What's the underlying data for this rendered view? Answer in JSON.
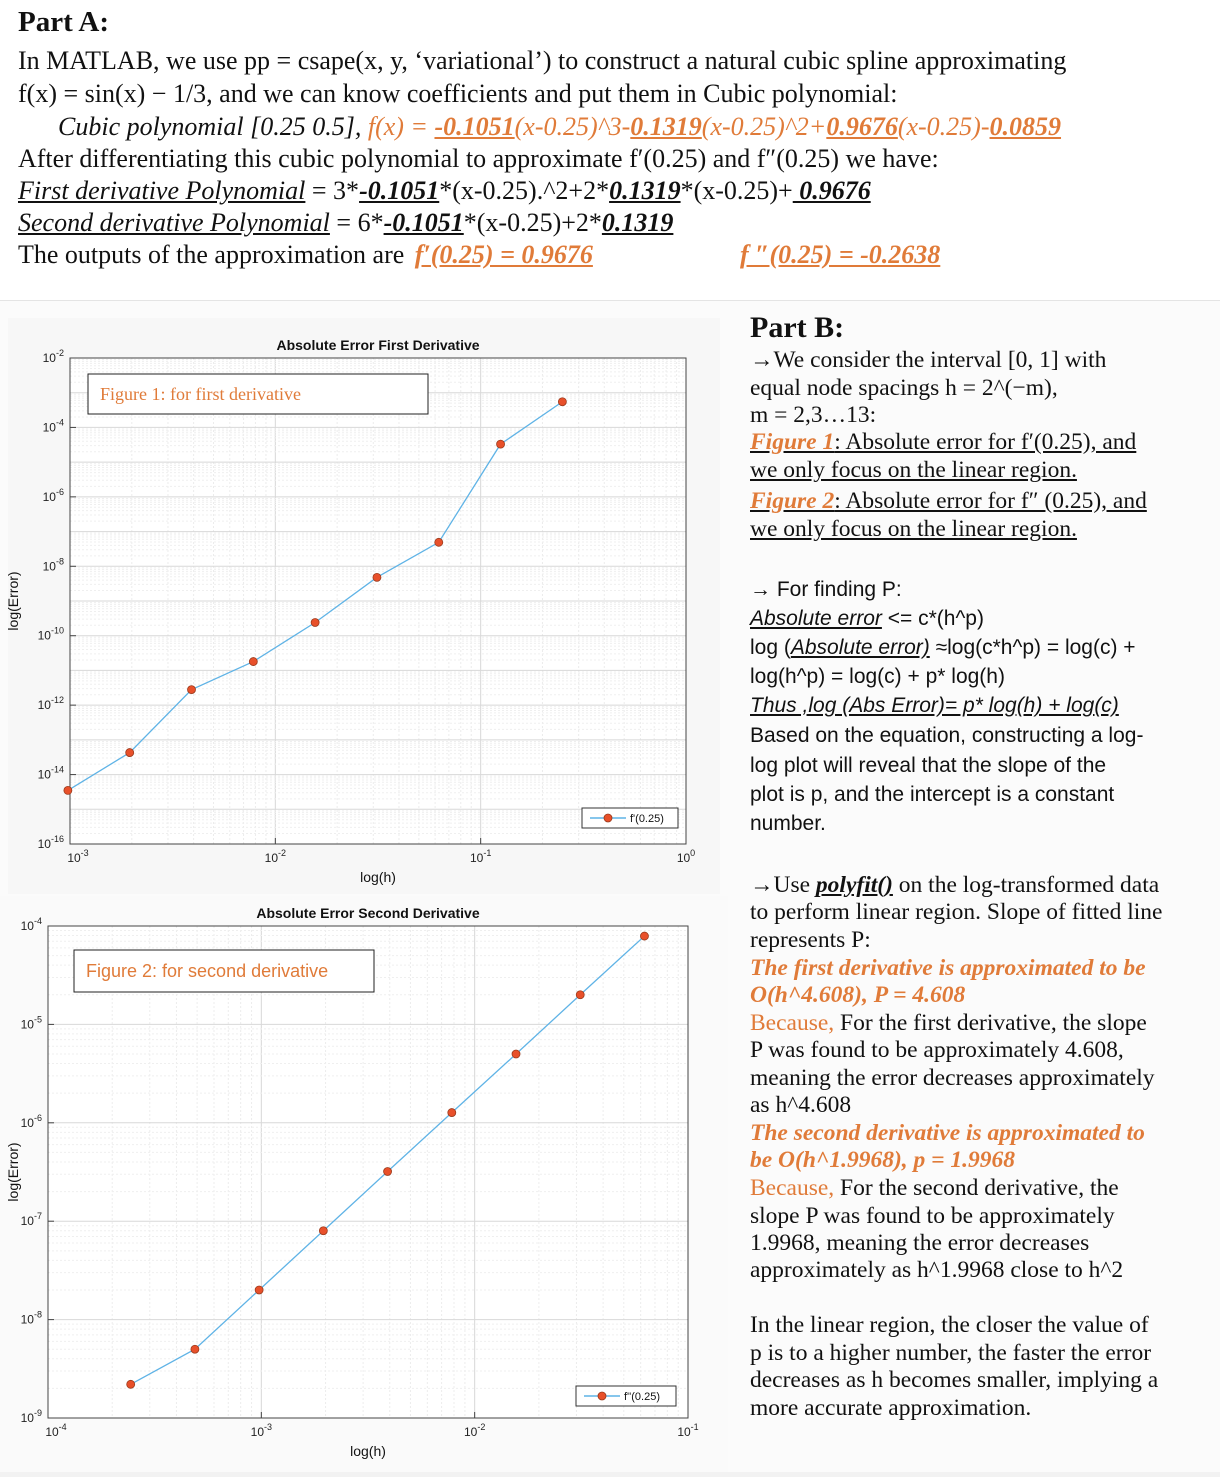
{
  "partA": {
    "heading": "Part A:",
    "line1": "In MATLAB, we use pp = csape(x, y, ‘variational’) to construct a natural cubic spline approximating",
    "line2": "f(x) = sin(x) − 1/3, and we can know coefficients and put them in Cubic polynomial:",
    "cubic": {
      "prefix": "Cubic polynomial [0.25 0.5], ",
      "fx": "f(x) = ",
      "c1": "-0.1051",
      "t1": "(x-0.25)^3-",
      "c2": "0.1319",
      "t2": "(x-0.25)^2+",
      "c3": "0.9676",
      "t3": "(x-0.25)-",
      "c4": "0.0859"
    },
    "line4": "After differentiating this cubic polynomial to approximate f′(0.25) and f″(0.25) we have:",
    "first_deriv": {
      "label": "First derivative Polynomial",
      "eq1": " = 3*",
      "c1": "-0.1051",
      "t1": "*(x-0.25).^2+2*",
      "c2": "0.1319",
      "t2": "*(x-0.25)+",
      "c3": " 0.9676"
    },
    "second_deriv": {
      "label": "Second derivative Polynomial",
      "eq1": " = 6*",
      "c1": "-0.1051",
      "t1": "*(x-0.25)+2*",
      "c2": "0.1319"
    },
    "outputs": {
      "text": "The outputs of the approximation are ",
      "first": "f′(0.25) = 0.9676",
      "second": "f ″(0.25) = -0.2638"
    }
  },
  "chart_data": [
    {
      "type": "line",
      "title": "Absolute Error First Derivative",
      "xlabel": "log(h)",
      "ylabel": "log(Error)",
      "xscale": "log",
      "yscale": "log",
      "xlim": [
        0.001,
        1
      ],
      "ylim": [
        1e-16,
        0.01
      ],
      "xticks": [
        "10^-3",
        "10^-2",
        "10^-1",
        "10^0"
      ],
      "yticks": [
        "10^-2",
        "10^-4",
        "10^-6",
        "10^-8",
        "10^-10",
        "10^-12",
        "10^-14",
        "10^-16"
      ],
      "grid": true,
      "legend_position": "bottom-right",
      "annotation": "Figure 1: for first derivative",
      "series": [
        {
          "name": "f'(0.25)",
          "x": [
            0.0009765625,
            0.001953125,
            0.00390625,
            0.0078125,
            0.015625,
            0.03125,
            0.0625,
            0.125,
            0.25
          ],
          "y": [
            3.5e-15,
            4.3e-14,
            2.8e-12,
            1.8e-11,
            2.4e-10,
            4.8e-09,
            4.9e-08,
            3.3e-05,
            0.00055
          ]
        }
      ]
    },
    {
      "type": "line",
      "title": "Absolute Error Second Derivative",
      "xlabel": "log(h)",
      "ylabel": "log(Error)",
      "xscale": "log",
      "yscale": "log",
      "xlim": [
        0.0001,
        0.1
      ],
      "ylim": [
        1e-09,
        0.0001
      ],
      "xticks": [
        "10^-4",
        "10^-3",
        "10^-2",
        "10^-1"
      ],
      "yticks": [
        "10^-4",
        "10^-5",
        "10^-6",
        "10^-7",
        "10^-8",
        "10^-9"
      ],
      "grid": true,
      "legend_position": "bottom-right",
      "annotation": "Figure 2: for second derivative",
      "series": [
        {
          "name": "f''(0.25)",
          "x": [
            0.000244140625,
            0.00048828125,
            0.0009765625,
            0.001953125,
            0.00390625,
            0.0078125,
            0.015625,
            0.03125,
            0.0625
          ],
          "y": [
            2.2e-09,
            5e-09,
            2e-08,
            8e-08,
            3.2e-07,
            1.27e-06,
            5e-06,
            2e-05,
            7.9e-05
          ]
        }
      ]
    }
  ],
  "partB": {
    "heading": "Part B:",
    "intro": [
      "→We consider the interval [0, 1] with",
      "equal node spacings h = 2^(−m),",
      "m = 2,3…13:"
    ],
    "fig1_label": "Figure 1",
    "fig1_desc1": ": Absolute error for f′(0.25), and",
    "fig1_desc2": "we only focus on the linear region.",
    "fig2_label": "Figure 2",
    "fig2_desc1": ": Absolute error for f″ (0.25), and",
    "fig2_desc2": "we only focus on the linear region.",
    "p_heading": "→ For finding P:",
    "p1_u": "Absolute error",
    "p1_rest": " <= c*(h^p)",
    "p2_a": "log (",
    "p2_u": "Absolute error)",
    "p2_rest": " ≈log(c*h^p) = log(c) +",
    "p3": "log(h^p) = log(c) + p* log(h)",
    "p4": "Thus ,log (Abs Error)= p* log(h) + log(c)",
    "p5": [
      "Based on the equation, constructing a log-",
      "log plot will reveal that the slope of the",
      "plot is p, and the intercept is a constant",
      "number."
    ],
    "use_a": "→Use ",
    "use_b": "polyfit()",
    "use_c": " on the log-transformed data",
    "use2": "to perform linear region. Slope of fitted line",
    "use3": "represents P:",
    "first_result": [
      "The first derivative is approximated to be",
      "O(h^4.608), P = 4.608"
    ],
    "because1_a": "Because,",
    "because1_b": " For the first derivative, the slope",
    "because1_rest": [
      "P was found to be approximately 4.608,",
      "meaning the error decreases approximately",
      "as h^4.608"
    ],
    "second_result": [
      "The second derivative is approximated to",
      "be O(h^1.9968), p = 1.9968"
    ],
    "because2_a": "Because,",
    "because2_b": " For the second derivative, the",
    "because2_rest": [
      "slope P was found to be approximately",
      "1.9968, meaning the error decreases",
      "approximately as h^1.9968 close to h^2"
    ],
    "conclusion": [
      "In the linear region, the closer the value of",
      "p is to a higher number, the faster the error",
      "decreases as h becomes smaller, implying a",
      "more accurate approximation."
    ]
  },
  "colors": {
    "accent_orange": "#e07b39",
    "line_blue": "#5fb3e6",
    "marker_red": "#e8502a"
  }
}
